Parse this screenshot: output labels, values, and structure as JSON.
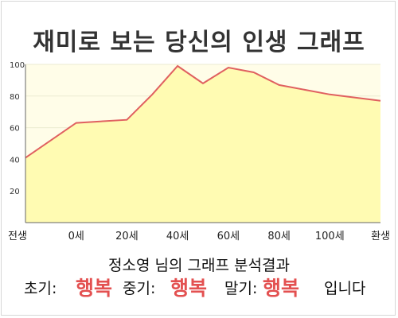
{
  "page": {
    "title": "재미로 보는 당신의 인생 그래프",
    "subtitle": "정소영 님의 그래프 분석결과",
    "result": {
      "early_label": "초기:",
      "early_value": "행복",
      "mid_label": "중기:",
      "mid_value": "행복",
      "late_label": "말기:",
      "late_value": "행복",
      "suffix": "입니다"
    }
  },
  "colors": {
    "plot_background": "#fffde8",
    "area_fill": "#fffbb2",
    "line": "#e06060",
    "highlight": "#e35050",
    "grid": "#ebebd2"
  },
  "chart_data": {
    "type": "area",
    "x_ticks": [
      {
        "x": 0,
        "label": "전생"
      },
      {
        "x": 10,
        "label": "0세"
      },
      {
        "x": 20,
        "label": "20세"
      },
      {
        "x": 30,
        "label": "40세"
      },
      {
        "x": 40,
        "label": "60세"
      },
      {
        "x": 50,
        "label": "80세"
      },
      {
        "x": 60,
        "label": "100세"
      },
      {
        "x": 70,
        "label": "환생"
      }
    ],
    "y_ticks": [
      20,
      40,
      60,
      80,
      100
    ],
    "xlim": [
      0,
      70
    ],
    "ylim": [
      0,
      100
    ],
    "grid": true,
    "points": [
      {
        "x": 0,
        "y": 41
      },
      {
        "x": 10,
        "y": 63
      },
      {
        "x": 20,
        "y": 65
      },
      {
        "x": 25,
        "y": 81
      },
      {
        "x": 30,
        "y": 99
      },
      {
        "x": 35,
        "y": 88
      },
      {
        "x": 40,
        "y": 98
      },
      {
        "x": 45,
        "y": 95
      },
      {
        "x": 50,
        "y": 87
      },
      {
        "x": 60,
        "y": 81
      },
      {
        "x": 70,
        "y": 77
      }
    ]
  }
}
